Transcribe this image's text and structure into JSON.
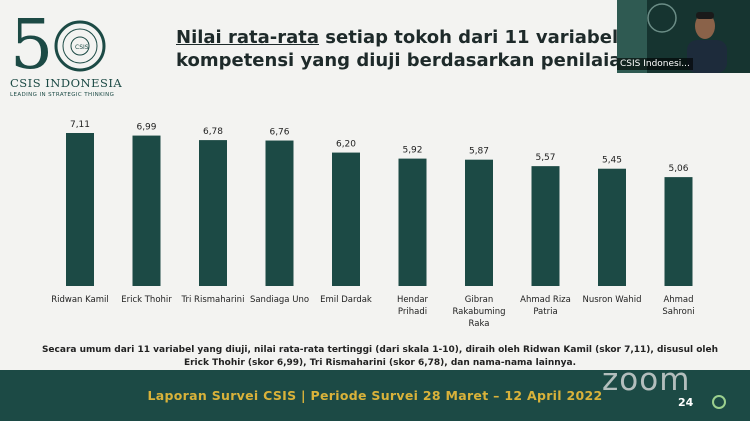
{
  "logo": {
    "number": "50",
    "name": "CSIS INDONESIA",
    "tagline": "LEADING IN STRATEGIC THINKING"
  },
  "title": {
    "underlined": "Nilai rata-rata",
    "rest1": " setiap tokoh dari 11 variabel",
    "line2": "kompetensi yang diuji berdasarkan penilaian ah"
  },
  "chart_data": {
    "type": "bar",
    "categories": [
      [
        "Ridwan Kamil"
      ],
      [
        "Erick Thohir"
      ],
      [
        "Tri Rismaharini"
      ],
      [
        "Sandiaga Uno"
      ],
      [
        "Emil Dardak"
      ],
      [
        "Hendar",
        "Prihadi"
      ],
      [
        "Gibran",
        "Rakabuming",
        "Raka"
      ],
      [
        "Ahmad Riza",
        "Patria"
      ],
      [
        "Nusron Wahid"
      ],
      [
        "Ahmad",
        "Sahroni"
      ]
    ],
    "values": [
      7.11,
      6.99,
      6.78,
      6.76,
      6.2,
      5.92,
      5.87,
      5.57,
      5.45,
      5.06
    ],
    "labels": [
      "7,11",
      "6,99",
      "6,78",
      "6,76",
      "6,20",
      "5,92",
      "5,87",
      "5,57",
      "5,45",
      "5,06"
    ],
    "ylim": [
      0,
      7.5
    ],
    "bar_color": "#1c4a45",
    "grid": false
  },
  "caption": {
    "line1": "Secara umum dari 11 variabel yang diuji, nilai rata-rata tertinggi (dari skala 1-10), diraih oleh Ridwan Kamil (skor 7,11), disusul oleh",
    "line2": "Erick Thohir (skor 6,99), Tri Rismaharini (skor 6,78), dan nama-nama lainnya."
  },
  "footer": {
    "text": "Laporan Survei CSIS | Periode Survei 28 Maret – 12 April 2022",
    "page": "24"
  },
  "zoom": {
    "watermark": "zoom"
  },
  "video": {
    "name": "CSIS Indonesi..."
  },
  "colors": {
    "primary": "#1c4a45",
    "accent": "#d9b23a",
    "background": "#f3f3f1"
  }
}
